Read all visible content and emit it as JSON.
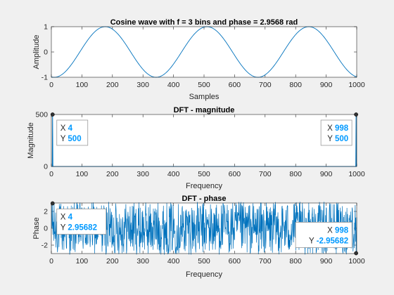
{
  "chart_data": [
    {
      "type": "line",
      "title": "Cosine wave with f = 3 bins and phase = 2.9568 rad",
      "xlabel": "Samples",
      "ylabel": "Amplitude",
      "xlim": [
        0,
        1000
      ],
      "ylim": [
        -1,
        1
      ],
      "xticks": [
        0,
        100,
        200,
        300,
        400,
        500,
        600,
        700,
        800,
        900,
        1000
      ],
      "yticks": [
        -1,
        0,
        1
      ],
      "grid": false,
      "series": [
        {
          "formula": "cos(2*pi*3*(n)/1000 + 2.9568)",
          "n_points": 1000,
          "x": [
            0,
            168,
            335,
            501,
            668,
            835,
            1000
          ],
          "y": [
            -0.98,
            1,
            -1,
            1,
            -1,
            1,
            -0.98
          ]
        }
      ],
      "color": "#0072bd"
    },
    {
      "type": "line",
      "title": "DFT - magnitude",
      "xlabel": "Frequency",
      "ylabel": "Magnitude",
      "xlim": [
        0,
        1000
      ],
      "ylim": [
        0,
        500
      ],
      "xticks": [
        0,
        100,
        200,
        300,
        400,
        500,
        600,
        700,
        800,
        900,
        1000
      ],
      "yticks": [
        0,
        500
      ],
      "grid": false,
      "series": [
        {
          "x": [
            1,
            4,
            998,
            1000
          ],
          "y": [
            0,
            500,
            500,
            0
          ],
          "note_baseline": 0
        }
      ],
      "datatips": [
        {
          "x_label": "X",
          "x_value": "4",
          "y_label": "Y",
          "y_value": "500",
          "x": 4,
          "y": 500,
          "side": "right"
        },
        {
          "x_label": "X",
          "x_value": "998",
          "y_label": "Y",
          "y_value": "500",
          "x": 998,
          "y": 500,
          "side": "left"
        }
      ],
      "color": "#0072bd"
    },
    {
      "type": "line",
      "title": "DFT - phase",
      "xlabel": "Frequency",
      "ylabel": "Phase",
      "xlim": [
        0,
        1000
      ],
      "ylim": [
        -3,
        3
      ],
      "xticks": [
        0,
        100,
        200,
        300,
        400,
        500,
        600,
        700,
        800,
        900,
        1000
      ],
      "yticks": [
        -2,
        0,
        2
      ],
      "grid": false,
      "series": [
        {
          "description_values": "noise-like phase values spanning roughly -3.14 to 3.14 across 1000 frequency bins"
        }
      ],
      "datatips": [
        {
          "x_label": "X",
          "x_value": "4",
          "y_label": "Y",
          "y_value": "2.95682",
          "x": 4,
          "y": 2.95682,
          "side": "right"
        },
        {
          "x_label": "X",
          "x_value": "998",
          "y_label": "Y",
          "y_value": "-2.95682",
          "x": 998,
          "y": -2.95682,
          "side": "left"
        }
      ],
      "color": "#0072bd"
    }
  ],
  "colors": {
    "line": "#0072bd",
    "datatip_value": "#0099ff",
    "axis": "#262626",
    "background": "#f0f0f0",
    "plot_bg": "#ffffff"
  }
}
